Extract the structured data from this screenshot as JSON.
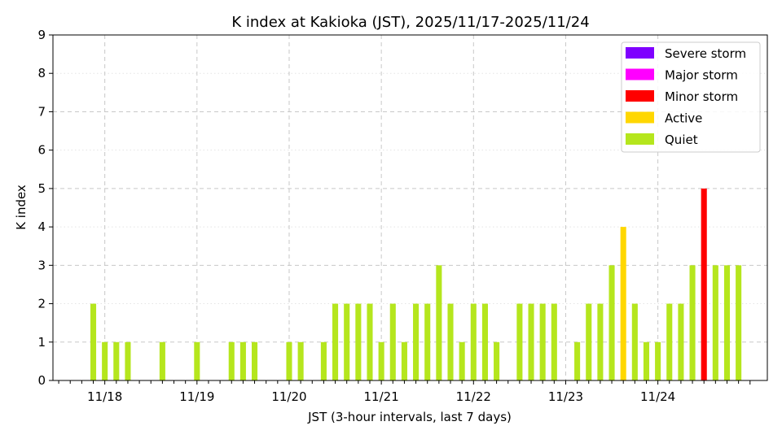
{
  "chart_data": {
    "type": "bar",
    "title": "K index at Kakioka (JST), 2025/11/17-2025/11/24",
    "xlabel": "JST (3-hour intervals, last 7 days)",
    "ylabel": "K index",
    "ylim": [
      0,
      9
    ],
    "yticks": [
      0,
      1,
      2,
      3,
      4,
      5,
      6,
      7,
      8,
      9
    ],
    "xlim": [
      -0.5,
      61.5
    ],
    "x_ticks": [
      {
        "label": "11/18",
        "x": 4
      },
      {
        "label": "11/19",
        "x": 12
      },
      {
        "label": "11/20",
        "x": 20
      },
      {
        "label": "11/21",
        "x": 28
      },
      {
        "label": "11/22",
        "x": 36
      },
      {
        "label": "11/23",
        "x": 44
      },
      {
        "label": "11/24",
        "x": 52
      }
    ],
    "grid": true,
    "legend_position": "top-right",
    "legend": [
      {
        "label": "Severe storm",
        "color": "#7f00ff"
      },
      {
        "label": "Major storm",
        "color": "#ff00ff"
      },
      {
        "label": "Minor storm",
        "color": "#ff0000"
      },
      {
        "label": "Active",
        "color": "#ffd700"
      },
      {
        "label": "Quiet",
        "color": "#b5e61d"
      }
    ],
    "bars": [
      {
        "x": 3,
        "value": 2,
        "level": "Quiet"
      },
      {
        "x": 4,
        "value": 1,
        "level": "Quiet"
      },
      {
        "x": 5,
        "value": 1,
        "level": "Quiet"
      },
      {
        "x": 6,
        "value": 1,
        "level": "Quiet"
      },
      {
        "x": 9,
        "value": 1,
        "level": "Quiet"
      },
      {
        "x": 12,
        "value": 1,
        "level": "Quiet"
      },
      {
        "x": 15,
        "value": 1,
        "level": "Quiet"
      },
      {
        "x": 16,
        "value": 1,
        "level": "Quiet"
      },
      {
        "x": 17,
        "value": 1,
        "level": "Quiet"
      },
      {
        "x": 20,
        "value": 1,
        "level": "Quiet"
      },
      {
        "x": 21,
        "value": 1,
        "level": "Quiet"
      },
      {
        "x": 23,
        "value": 1,
        "level": "Quiet"
      },
      {
        "x": 24,
        "value": 2,
        "level": "Quiet"
      },
      {
        "x": 25,
        "value": 2,
        "level": "Quiet"
      },
      {
        "x": 26,
        "value": 2,
        "level": "Quiet"
      },
      {
        "x": 27,
        "value": 2,
        "level": "Quiet"
      },
      {
        "x": 28,
        "value": 1,
        "level": "Quiet"
      },
      {
        "x": 29,
        "value": 2,
        "level": "Quiet"
      },
      {
        "x": 30,
        "value": 1,
        "level": "Quiet"
      },
      {
        "x": 31,
        "value": 2,
        "level": "Quiet"
      },
      {
        "x": 32,
        "value": 2,
        "level": "Quiet"
      },
      {
        "x": 33,
        "value": 3,
        "level": "Quiet"
      },
      {
        "x": 34,
        "value": 2,
        "level": "Quiet"
      },
      {
        "x": 35,
        "value": 1,
        "level": "Quiet"
      },
      {
        "x": 36,
        "value": 2,
        "level": "Quiet"
      },
      {
        "x": 37,
        "value": 2,
        "level": "Quiet"
      },
      {
        "x": 38,
        "value": 1,
        "level": "Quiet"
      },
      {
        "x": 40,
        "value": 2,
        "level": "Quiet"
      },
      {
        "x": 41,
        "value": 2,
        "level": "Quiet"
      },
      {
        "x": 42,
        "value": 2,
        "level": "Quiet"
      },
      {
        "x": 43,
        "value": 2,
        "level": "Quiet"
      },
      {
        "x": 45,
        "value": 1,
        "level": "Quiet"
      },
      {
        "x": 46,
        "value": 2,
        "level": "Quiet"
      },
      {
        "x": 47,
        "value": 2,
        "level": "Quiet"
      },
      {
        "x": 48,
        "value": 3,
        "level": "Quiet"
      },
      {
        "x": 49,
        "value": 4,
        "level": "Active"
      },
      {
        "x": 50,
        "value": 2,
        "level": "Quiet"
      },
      {
        "x": 51,
        "value": 1,
        "level": "Quiet"
      },
      {
        "x": 52,
        "value": 1,
        "level": "Quiet"
      },
      {
        "x": 53,
        "value": 2,
        "level": "Quiet"
      },
      {
        "x": 54,
        "value": 2,
        "level": "Quiet"
      },
      {
        "x": 55,
        "value": 3,
        "level": "Quiet"
      },
      {
        "x": 56,
        "value": 5,
        "level": "Minor storm"
      },
      {
        "x": 57,
        "value": 3,
        "level": "Quiet"
      },
      {
        "x": 58,
        "value": 3,
        "level": "Quiet"
      },
      {
        "x": 59,
        "value": 3,
        "level": "Quiet"
      }
    ]
  }
}
